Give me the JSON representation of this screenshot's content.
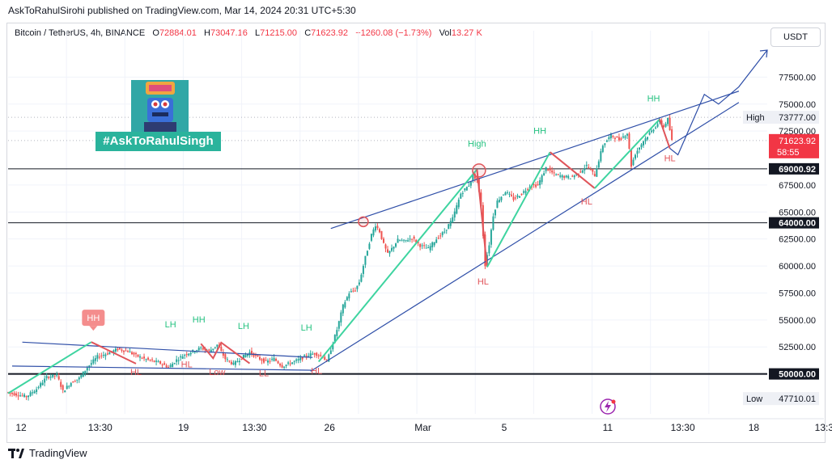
{
  "header": {
    "publish_text": "AskToRahulSirohi published on TradingView.com, Mar 14, 2024 20:31 UTC+5:30"
  },
  "legend": {
    "symbol": "Bitcoin / TetherUS, 4h, BINANCE",
    "open_key": "O",
    "open": "72884.01",
    "high_key": "H",
    "high": "73047.16",
    "low_key": "L",
    "low": "71215.00",
    "close_key": "C",
    "close": "71623.92",
    "change": "−1260.08 (−1.73%)",
    "vol_key": "Vol",
    "vol": "13.27 K"
  },
  "currency": "USDT",
  "badge": "#AskToRahulSingh",
  "footer": {
    "brand": "TradingView"
  },
  "colors": {
    "up": "#26a69a",
    "down": "#ef5350",
    "trend": "#2f4fa8",
    "green_leg": "#3ed4a0",
    "red_leg": "#e0545a",
    "label_green": "#26c281",
    "label_red": "#e0545a"
  },
  "chart_data": {
    "type": "line",
    "title": "",
    "xlabel": "",
    "ylabel": "",
    "ylim": [
      46300,
      80300
    ],
    "x_ticks": [
      "12",
      "13:30",
      "19",
      "13:30",
      "26",
      "Mar",
      "5",
      "11",
      "13:30",
      "18",
      "13:30"
    ],
    "y_ticks": [
      "77500.00",
      "75000.00",
      "72500.00",
      "67500.00",
      "65000.00",
      "62500.00",
      "60000.00",
      "57500.00",
      "55000.00",
      "52500.00"
    ],
    "price_tags": [
      {
        "label": "High",
        "value": "73777.00",
        "style": "plain"
      },
      {
        "label": "",
        "value": "71623.92",
        "sub": "58:55",
        "style": "red"
      },
      {
        "label": "",
        "value": "69000.92",
        "style": "dark"
      },
      {
        "label": "",
        "value": "64000.00",
        "style": "dark"
      },
      {
        "label": "",
        "value": "50000.00",
        "style": "dark"
      },
      {
        "label": "Low",
        "value": "47710.01",
        "style": "plain"
      }
    ],
    "horizontal_levels": [
      69000.92,
      64000.0,
      50000.0
    ],
    "price_path": [
      [
        0,
        48300
      ],
      [
        5,
        48100
      ],
      [
        10,
        47900
      ],
      [
        15,
        48600
      ],
      [
        20,
        49700
      ],
      [
        25,
        49900
      ],
      [
        28,
        48400
      ],
      [
        32,
        49200
      ],
      [
        36,
        49600
      ],
      [
        40,
        50600
      ],
      [
        45,
        51600
      ],
      [
        50,
        51900
      ],
      [
        55,
        52300
      ],
      [
        60,
        52100
      ],
      [
        64,
        51700
      ],
      [
        68,
        51400
      ],
      [
        72,
        51200
      ],
      [
        76,
        51000
      ],
      [
        80,
        50600
      ],
      [
        84,
        51300
      ],
      [
        88,
        51800
      ],
      [
        92,
        52100
      ],
      [
        96,
        52400
      ],
      [
        100,
        52100
      ],
      [
        104,
        52700
      ],
      [
        108,
        51400
      ],
      [
        112,
        50900
      ],
      [
        116,
        51500
      ],
      [
        120,
        52000
      ],
      [
        124,
        51500
      ],
      [
        128,
        51100
      ],
      [
        132,
        51400
      ],
      [
        136,
        50700
      ],
      [
        140,
        51000
      ],
      [
        144,
        51300
      ],
      [
        148,
        51700
      ],
      [
        152,
        51900
      ],
      [
        156,
        51600
      ],
      [
        158,
        51100
      ],
      [
        160,
        52300
      ],
      [
        163,
        54100
      ],
      [
        166,
        56300
      ],
      [
        169,
        57500
      ],
      [
        172,
        57800
      ],
      [
        174,
        58500
      ],
      [
        177,
        60800
      ],
      [
        180,
        62900
      ],
      [
        182,
        63800
      ],
      [
        184,
        63200
      ],
      [
        186,
        62000
      ],
      [
        188,
        61100
      ],
      [
        190,
        61600
      ],
      [
        193,
        62400
      ],
      [
        196,
        62300
      ],
      [
        200,
        62600
      ],
      [
        204,
        61900
      ],
      [
        208,
        61600
      ],
      [
        212,
        62500
      ],
      [
        216,
        63200
      ],
      [
        220,
        64400
      ],
      [
        224,
        66700
      ],
      [
        228,
        67500
      ],
      [
        230,
        68400
      ],
      [
        232,
        68000
      ],
      [
        234,
        65600
      ],
      [
        236,
        60100
      ],
      [
        238,
        62000
      ],
      [
        240,
        64700
      ],
      [
        242,
        66000
      ],
      [
        246,
        66900
      ],
      [
        250,
        66200
      ],
      [
        254,
        66700
      ],
      [
        258,
        67400
      ],
      [
        262,
        67500
      ],
      [
        266,
        69100
      ],
      [
        270,
        68500
      ],
      [
        274,
        68300
      ],
      [
        278,
        68200
      ],
      [
        282,
        68600
      ],
      [
        286,
        69300
      ],
      [
        290,
        68400
      ],
      [
        294,
        71200
      ],
      [
        298,
        72100
      ],
      [
        302,
        71700
      ],
      [
        306,
        72300
      ],
      [
        308,
        69300
      ],
      [
        310,
        70400
      ],
      [
        314,
        71600
      ],
      [
        318,
        72500
      ],
      [
        322,
        73400
      ],
      [
        324,
        72900
      ],
      [
        326,
        73600
      ],
      [
        328,
        71600
      ]
    ],
    "trend_lines": [
      {
        "from": [
          7,
          52940
        ],
        "to": [
          150,
          51525
        ]
      },
      {
        "from": [
          2,
          50730
        ],
        "to": [
          150,
          50340
        ]
      },
      {
        "from": [
          159,
          63470
        ],
        "to": [
          360,
          76200
        ]
      },
      {
        "from": [
          149,
          50240
        ],
        "to": [
          360,
          75150
        ]
      }
    ],
    "swing_legs": [
      {
        "color": "green",
        "points": [
          [
            0,
            48200
          ],
          [
            41,
            52950
          ]
        ]
      },
      {
        "color": "red",
        "points": [
          [
            41,
            52950
          ],
          [
            63,
            50950
          ]
        ]
      },
      {
        "color": "red",
        "points": [
          [
            95,
            52800
          ],
          [
            101,
            51450
          ],
          [
            105,
            52900
          ],
          [
            119,
            50980
          ]
        ]
      },
      {
        "color": "green",
        "points": [
          [
            153,
            51130
          ],
          [
            231,
            68950
          ]
        ]
      },
      {
        "color": "red",
        "points": [
          [
            231,
            68950
          ],
          [
            236,
            59900
          ]
        ]
      },
      {
        "color": "green",
        "points": [
          [
            236,
            59900
          ],
          [
            267,
            70550
          ]
        ]
      },
      {
        "color": "red",
        "points": [
          [
            267,
            70550
          ],
          [
            289,
            67200
          ]
        ]
      },
      {
        "color": "green",
        "points": [
          [
            289,
            67200
          ],
          [
            321,
            73600
          ]
        ]
      },
      {
        "color": "red",
        "points": [
          [
            321,
            73600
          ],
          [
            326,
            70900
          ]
        ]
      }
    ],
    "projection": [
      [
        326,
        70900
      ],
      [
        330,
        70300
      ],
      [
        343,
        75900
      ],
      [
        350,
        75000
      ],
      [
        360,
        76600
      ],
      [
        374,
        80000
      ]
    ],
    "circles": [
      [
        175,
        64100
      ],
      [
        232,
        68850
      ]
    ],
    "labels": [
      {
        "text": "HH",
        "x": 42,
        "y": 54900,
        "color": "label_box"
      },
      {
        "text": "LH",
        "x": 80,
        "y": 54300,
        "color": "green"
      },
      {
        "text": "HH",
        "x": 94,
        "y": 54750,
        "color": "green"
      },
      {
        "text": "LH",
        "x": 116,
        "y": 54150,
        "color": "green"
      },
      {
        "text": "LH",
        "x": 147,
        "y": 54000,
        "color": "green"
      },
      {
        "text": "HL",
        "x": 63,
        "y": 49900,
        "color": "red"
      },
      {
        "text": "HL",
        "x": 88,
        "y": 50600,
        "color": "red"
      },
      {
        "text": "Low",
        "x": 103,
        "y": 49900,
        "color": "red"
      },
      {
        "text": "LL",
        "x": 126,
        "y": 49800,
        "color": "red"
      },
      {
        "text": "HL",
        "x": 152,
        "y": 50000,
        "color": "red"
      },
      {
        "text": "High",
        "x": 231,
        "y": 71050,
        "color": "green"
      },
      {
        "text": "HL",
        "x": 234,
        "y": 58300,
        "color": "red"
      },
      {
        "text": "HH",
        "x": 262,
        "y": 72250,
        "color": "green"
      },
      {
        "text": "HL",
        "x": 285,
        "y": 65700,
        "color": "red"
      },
      {
        "text": "HH",
        "x": 318,
        "y": 75250,
        "color": "green"
      },
      {
        "text": "HL",
        "x": 326,
        "y": 69700,
        "color": "red"
      }
    ]
  }
}
